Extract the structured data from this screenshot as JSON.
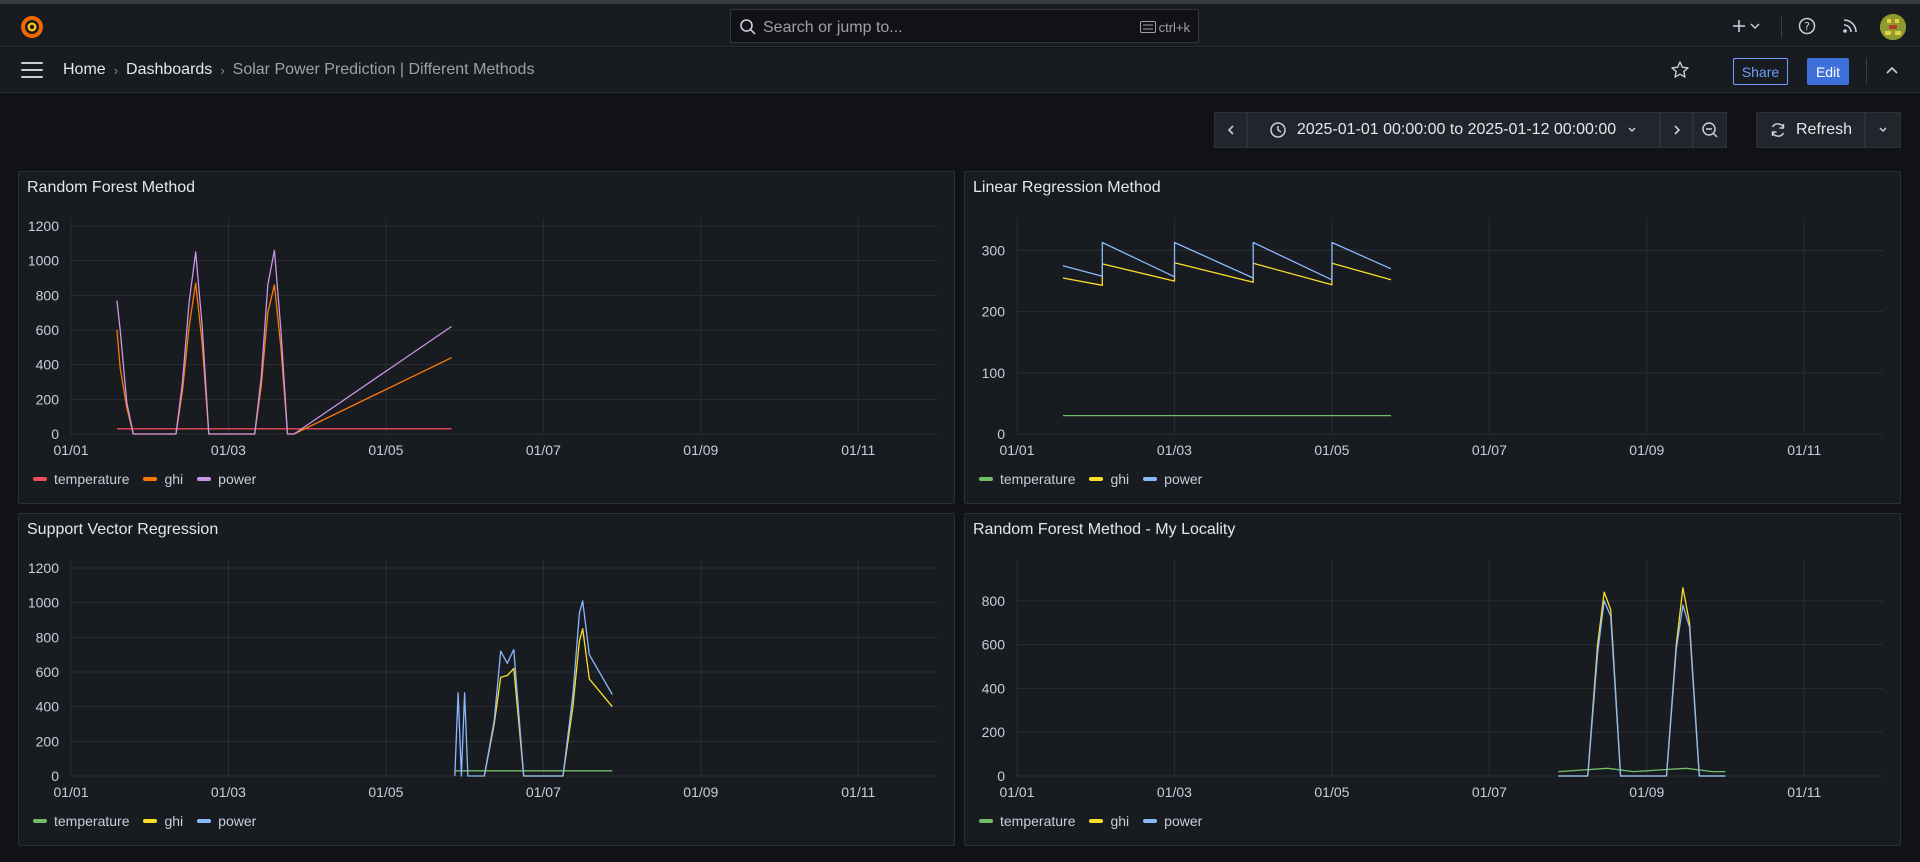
{
  "topbar": {
    "search_placeholder": "Search or jump to...",
    "search_shortcut": "ctrl+k"
  },
  "nav": {
    "breadcrumb": [
      "Home",
      "Dashboards",
      "Solar Power Prediction | Different Methods"
    ],
    "share_label": "Share",
    "edit_label": "Edit"
  },
  "timepicker": {
    "range": "2025-01-01 00:00:00 to 2025-01-12 00:00:00",
    "refresh_label": "Refresh"
  },
  "colors": {
    "rf_temperature": "#f2495c",
    "rf_ghi": "#ff780a",
    "rf_power": "#ca95e5",
    "temperature": "#73bf69",
    "ghi": "#fade2a",
    "power": "#8ab8ff"
  },
  "panels": [
    {
      "title": "Random Forest Method",
      "legend": [
        {
          "label": "temperature",
          "color": "#f2495c"
        },
        {
          "label": "ghi",
          "color": "#ff780a"
        },
        {
          "label": "power",
          "color": "#ca95e5"
        }
      ]
    },
    {
      "title": "Linear Regression Method",
      "legend": [
        {
          "label": "temperature",
          "color": "#73bf69"
        },
        {
          "label": "ghi",
          "color": "#fade2a"
        },
        {
          "label": "power",
          "color": "#8ab8ff"
        }
      ]
    },
    {
      "title": "Support Vector Regression",
      "legend": [
        {
          "label": "temperature",
          "color": "#73bf69"
        },
        {
          "label": "ghi",
          "color": "#fade2a"
        },
        {
          "label": "power",
          "color": "#8ab8ff"
        }
      ]
    },
    {
      "title": "Random Forest Method - My Locality",
      "legend": [
        {
          "label": "temperature",
          "color": "#73bf69"
        },
        {
          "label": "ghi",
          "color": "#fade2a"
        },
        {
          "label": "power",
          "color": "#8ab8ff"
        }
      ]
    }
  ],
  "chart_data": [
    {
      "type": "line",
      "title": "Random Forest Method",
      "x_ticks": [
        "01/01",
        "01/03",
        "01/05",
        "01/07",
        "01/09",
        "01/11"
      ],
      "xlim": [
        "2025-01-01",
        "2025-01-12"
      ],
      "ylim": [
        0,
        1200
      ],
      "y_ticks": [
        0,
        200,
        400,
        600,
        800,
        1000,
        1200
      ],
      "grid": true,
      "legend_position": "bottom-left",
      "series": [
        {
          "name": "temperature",
          "color": "#f2495c",
          "points": [
            [
              "2025-01-01 14:00",
              30
            ],
            [
              "2025-01-05 20:00",
              30
            ]
          ]
        },
        {
          "name": "ghi",
          "color": "#ff780a",
          "points": [
            [
              "2025-01-01 14:00",
              600
            ],
            [
              "2025-01-01 15:00",
              380
            ],
            [
              "2025-01-01 17:00",
              150
            ],
            [
              "2025-01-01 19:00",
              0
            ],
            [
              "2025-01-02 08:00",
              0
            ],
            [
              "2025-01-02 10:00",
              250
            ],
            [
              "2025-01-02 12:00",
              620
            ],
            [
              "2025-01-02 14:00",
              870
            ],
            [
              "2025-01-02 16:00",
              520
            ],
            [
              "2025-01-02 18:00",
              0
            ],
            [
              "2025-01-03 08:00",
              0
            ],
            [
              "2025-01-03 10:00",
              280
            ],
            [
              "2025-01-03 12:00",
              700
            ],
            [
              "2025-01-03 14:00",
              860
            ],
            [
              "2025-01-03 16:00",
              500
            ],
            [
              "2025-01-03 18:00",
              0
            ],
            [
              "2025-01-03 20:00",
              0
            ],
            [
              "2025-01-05 20:00",
              440
            ]
          ]
        },
        {
          "name": "power",
          "color": "#ca95e5",
          "points": [
            [
              "2025-01-01 14:00",
              770
            ],
            [
              "2025-01-01 15:00",
              600
            ],
            [
              "2025-01-01 17:00",
              180
            ],
            [
              "2025-01-01 19:00",
              0
            ],
            [
              "2025-01-02 08:00",
              0
            ],
            [
              "2025-01-02 10:00",
              300
            ],
            [
              "2025-01-02 12:00",
              760
            ],
            [
              "2025-01-02 14:00",
              1050
            ],
            [
              "2025-01-02 16:00",
              620
            ],
            [
              "2025-01-02 18:00",
              0
            ],
            [
              "2025-01-03 08:00",
              0
            ],
            [
              "2025-01-03 10:00",
              330
            ],
            [
              "2025-01-03 12:00",
              860
            ],
            [
              "2025-01-03 14:00",
              1060
            ],
            [
              "2025-01-03 16:00",
              600
            ],
            [
              "2025-01-03 18:00",
              0
            ],
            [
              "2025-01-03 20:00",
              0
            ],
            [
              "2025-01-05 20:00",
              620
            ]
          ]
        }
      ]
    },
    {
      "type": "line",
      "title": "Linear Regression Method",
      "x_ticks": [
        "01/01",
        "01/03",
        "01/05",
        "01/07",
        "01/09",
        "01/11"
      ],
      "xlim": [
        "2025-01-01",
        "2025-01-12"
      ],
      "ylim": [
        0,
        340
      ],
      "y_ticks": [
        0,
        100,
        200,
        300
      ],
      "grid": true,
      "legend_position": "bottom-left",
      "series": [
        {
          "name": "temperature",
          "color": "#73bf69",
          "points": [
            [
              "2025-01-01 14:00",
              30
            ],
            [
              "2025-01-05 18:00",
              30
            ]
          ]
        },
        {
          "name": "ghi",
          "color": "#fade2a",
          "points": [
            [
              "2025-01-01 14:00",
              255
            ],
            [
              "2025-01-02 02:00",
              243
            ],
            [
              "2025-01-02 02:01",
              278
            ],
            [
              "2025-01-03 00:00",
              250
            ],
            [
              "2025-01-03 00:01",
              280
            ],
            [
              "2025-01-04 00:00",
              248
            ],
            [
              "2025-01-04 00:01",
              279
            ],
            [
              "2025-01-05 00:00",
              244
            ],
            [
              "2025-01-05 00:01",
              279
            ],
            [
              "2025-01-05 18:00",
              252
            ]
          ]
        },
        {
          "name": "power",
          "color": "#8ab8ff",
          "points": [
            [
              "2025-01-01 14:00",
              275
            ],
            [
              "2025-01-02 02:00",
              258
            ],
            [
              "2025-01-02 02:01",
              313
            ],
            [
              "2025-01-03 00:00",
              257
            ],
            [
              "2025-01-03 00:01",
              313
            ],
            [
              "2025-01-04 00:00",
              255
            ],
            [
              "2025-01-04 00:01",
              313
            ],
            [
              "2025-01-05 00:00",
              252
            ],
            [
              "2025-01-05 00:01",
              313
            ],
            [
              "2025-01-05 18:00",
              270
            ]
          ]
        }
      ]
    },
    {
      "type": "line",
      "title": "Support Vector Regression",
      "x_ticks": [
        "01/01",
        "01/03",
        "01/05",
        "01/07",
        "01/09",
        "01/11"
      ],
      "xlim": [
        "2025-01-01",
        "2025-01-12"
      ],
      "ylim": [
        0,
        1200
      ],
      "y_ticks": [
        0,
        200,
        400,
        600,
        800,
        1000,
        1200
      ],
      "grid": true,
      "legend_position": "bottom-left",
      "series": [
        {
          "name": "temperature",
          "color": "#73bf69",
          "points": [
            [
              "2025-01-05 21:00",
              30
            ],
            [
              "2025-01-07 21:00",
              30
            ]
          ]
        },
        {
          "name": "ghi",
          "color": "#fade2a",
          "points": [
            [
              "2025-01-06 06:00",
              0
            ],
            [
              "2025-01-06 09:00",
              300
            ],
            [
              "2025-01-06 11:00",
              570
            ],
            [
              "2025-01-06 13:00",
              580
            ],
            [
              "2025-01-06 15:00",
              620
            ],
            [
              "2025-01-06 18:00",
              0
            ],
            [
              "2025-01-07 06:00",
              0
            ],
            [
              "2025-01-07 09:00",
              400
            ],
            [
              "2025-01-07 11:00",
              780
            ],
            [
              "2025-01-07 12:00",
              850
            ],
            [
              "2025-01-07 14:00",
              560
            ],
            [
              "2025-01-07 21:00",
              400
            ]
          ]
        },
        {
          "name": "power",
          "color": "#8ab8ff",
          "points": [
            [
              "2025-01-05 21:00",
              0
            ],
            [
              "2025-01-05 22:00",
              480
            ],
            [
              "2025-01-05 23:00",
              0
            ],
            [
              "2025-01-06 00:00",
              480
            ],
            [
              "2025-01-06 01:00",
              0
            ],
            [
              "2025-01-06 06:00",
              0
            ],
            [
              "2025-01-06 09:00",
              320
            ],
            [
              "2025-01-06 11:00",
              720
            ],
            [
              "2025-01-06 13:00",
              650
            ],
            [
              "2025-01-06 15:00",
              730
            ],
            [
              "2025-01-06 18:00",
              0
            ],
            [
              "2025-01-07 06:00",
              0
            ],
            [
              "2025-01-07 09:00",
              470
            ],
            [
              "2025-01-07 11:00",
              940
            ],
            [
              "2025-01-07 12:00",
              1010
            ],
            [
              "2025-01-07 14:00",
              700
            ],
            [
              "2025-01-07 21:00",
              470
            ]
          ]
        }
      ]
    },
    {
      "type": "line",
      "title": "Random Forest Method - My Locality",
      "x_ticks": [
        "01/01",
        "01/03",
        "01/05",
        "01/07",
        "01/09",
        "01/11"
      ],
      "xlim": [
        "2025-01-01",
        "2025-01-12"
      ],
      "ylim": [
        0,
        950
      ],
      "y_ticks": [
        0,
        200,
        400,
        600,
        800
      ],
      "grid": true,
      "legend_position": "bottom-left",
      "series": [
        {
          "name": "temperature",
          "color": "#73bf69",
          "points": [
            [
              "2025-01-07 21:00",
              20
            ],
            [
              "2025-01-08 12:00",
              35
            ],
            [
              "2025-01-08 20:00",
              20
            ],
            [
              "2025-01-09 12:00",
              35
            ],
            [
              "2025-01-09 20:00",
              20
            ],
            [
              "2025-01-10 00:00",
              20
            ]
          ]
        },
        {
          "name": "ghi",
          "color": "#fade2a",
          "points": [
            [
              "2025-01-07 21:00",
              0
            ],
            [
              "2025-01-08 06:00",
              0
            ],
            [
              "2025-01-08 09:00",
              600
            ],
            [
              "2025-01-08 11:00",
              840
            ],
            [
              "2025-01-08 13:00",
              760
            ],
            [
              "2025-01-08 16:00",
              0
            ],
            [
              "2025-01-09 06:00",
              0
            ],
            [
              "2025-01-09 09:00",
              600
            ],
            [
              "2025-01-09 11:00",
              860
            ],
            [
              "2025-01-09 13:00",
              700
            ],
            [
              "2025-01-09 16:00",
              0
            ],
            [
              "2025-01-10 00:00",
              0
            ]
          ]
        },
        {
          "name": "power",
          "color": "#8ab8ff",
          "points": [
            [
              "2025-01-07 21:00",
              0
            ],
            [
              "2025-01-08 06:00",
              0
            ],
            [
              "2025-01-08 09:00",
              560
            ],
            [
              "2025-01-08 11:00",
              800
            ],
            [
              "2025-01-08 13:00",
              730
            ],
            [
              "2025-01-08 16:00",
              0
            ],
            [
              "2025-01-09 06:00",
              0
            ],
            [
              "2025-01-09 09:00",
              580
            ],
            [
              "2025-01-09 11:00",
              780
            ],
            [
              "2025-01-09 13:00",
              680
            ],
            [
              "2025-01-09 16:00",
              0
            ],
            [
              "2025-01-10 00:00",
              0
            ]
          ]
        }
      ]
    }
  ]
}
